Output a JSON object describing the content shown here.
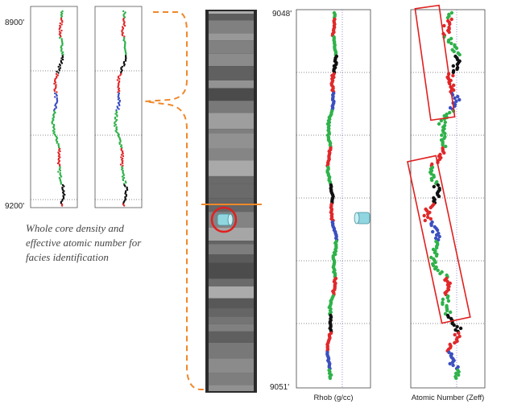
{
  "left_logs": {
    "top_depth": "8900'",
    "bottom_depth": "9200'"
  },
  "caption": [
    "Whole core density and",
    "effective atomic number for",
    "facies identification"
  ],
  "right_logs": {
    "top_depth": "9048'",
    "bottom_depth": "9051'",
    "panels": [
      {
        "label": "Rhob (g/cc)"
      },
      {
        "label": "Atomic Number (Zeff)"
      }
    ]
  }
}
